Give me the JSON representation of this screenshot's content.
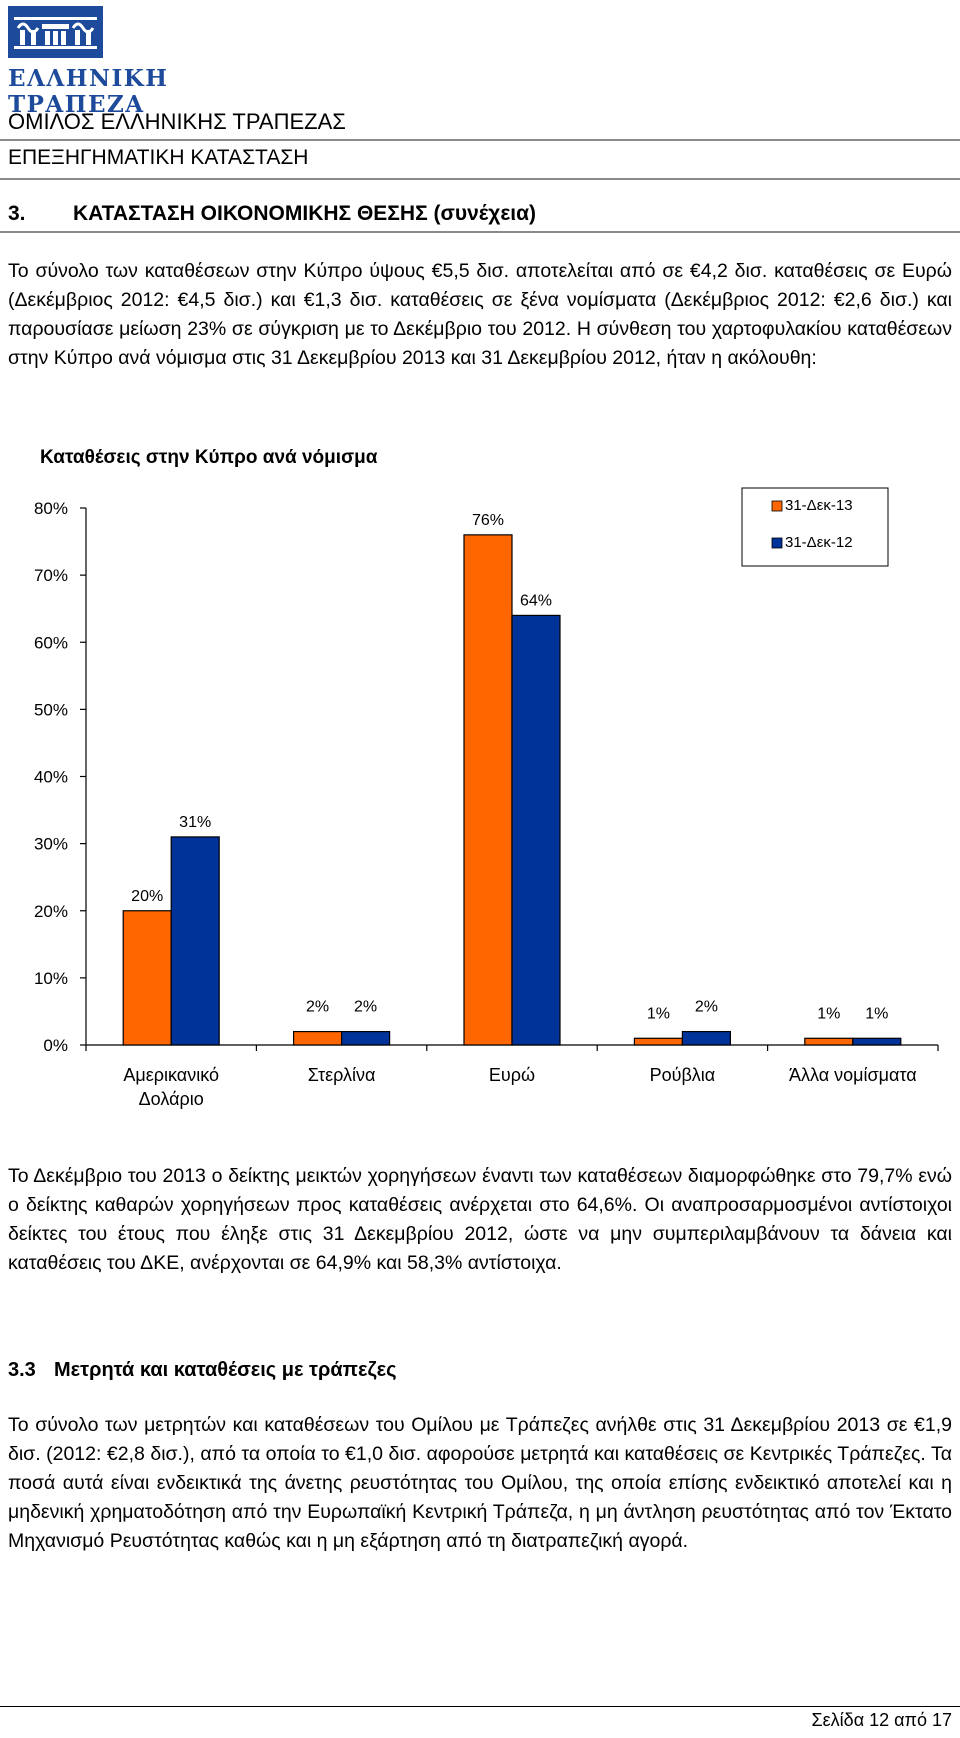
{
  "header": {
    "logo_text": "ΕΛΛΗΝΙΚΗ ΤΡΑΠΕΖΑ",
    "bank_name": "ΕΛΛΗΝΙΚΗ ΤΡΑΠΕΖΑ",
    "group_title": "ΟΜΙΛΟΣ ΕΛΛΗΝΙΚΗΣ ΤΡΑΠΕΖΑΣ",
    "report_title": "ΕΠΕΞΗΓΗΜΑΤΙΚΗ ΚΑΤΑΣΤΑΣΗ"
  },
  "section": {
    "number": "3.",
    "title": "ΚΑΤΑΣΤΑΣΗ ΟΙΚΟΝΟΜΙΚΗΣ ΘΕΣΗΣ (συνέχεια)"
  },
  "paragraph1": "Το σύνολο των καταθέσεων στην Κύπρο ύψους €5,5 δισ. αποτελείται από σε €4,2 δισ. καταθέσεις σε Ευρώ (Δεκέμβριος 2012: €4,5 δισ.) και €1,3 δισ. καταθέσεις σε ξένα νομίσματα (Δεκέμβριος 2012: €2,6 δισ.) και παρουσίασε μείωση 23% σε σύγκριση με το Δεκέμβριο του 2012. Η σύνθεση του χαρτοφυλακίου καταθέσεων στην Κύπρο ανά νόμισμα στις 31 Δεκεμβρίου 2013 και 31 Δεκεμβρίου 2012, ήταν η ακόλουθη:",
  "chart_data": {
    "type": "bar",
    "title": "Καταθέσεις στην Κύπρο ανά νόμισμα",
    "categories": [
      "Αμερικανικό Δολάριο",
      "Στερλίνα",
      "Ευρώ",
      "Ρούβλια",
      "Άλλα νομίσματα"
    ],
    "series": [
      {
        "name": "31-Δεκ-13",
        "values": [
          20,
          2,
          76,
          1,
          1
        ],
        "labels": [
          "20%",
          "2%",
          "76%",
          "1%",
          "1%"
        ],
        "color": "#ff6600"
      },
      {
        "name": "31-Δεκ-12",
        "values": [
          31,
          2,
          64,
          2,
          1
        ],
        "labels": [
          "31%",
          "2%",
          "64%",
          "2%",
          "1%"
        ],
        "color": "#003399"
      }
    ],
    "yticks": [
      "0%",
      "10%",
      "20%",
      "30%",
      "40%",
      "50%",
      "60%",
      "70%",
      "80%"
    ],
    "ylim": [
      0,
      80
    ],
    "legend_position": "top-right",
    "grid": false
  },
  "paragraph2": "Το Δεκέμβριο του 2013 ο δείκτης μεικτών χορηγήσεων έναντι των καταθέσεων διαμορφώθηκε στο 79,7% ενώ ο δείκτης καθαρών χορηγήσεων προς καταθέσεις ανέρχεται στο 64,6%. Οι αναπροσαρμοσμένοι αντίστοιχοι δείκτες του έτους που έληξε στις 31 Δεκεμβρίου 2012, ώστε να μην συμπεριλαμβάνουν τα δάνεια και καταθέσεις του ΔΚΕ, ανέρχονται σε 64,9% και 58,3% αντίστοιχα.",
  "subsection": {
    "number": "3.3",
    "title": "Μετρητά και καταθέσεις με τράπεζες"
  },
  "paragraph3": "Το σύνολο των μετρητών και καταθέσεων του Ομίλου με Τράπεζες ανήλθε στις 31 Δεκεμβρίου 2013 σε €1,9 δισ. (2012: €2,8 δισ.), από τα οποία το €1,0 δισ. αφορούσε μετρητά και καταθέσεις σε Κεντρικές Τράπεζες. Τα ποσά αυτά είναι ενδεικτικά της άνετης ρευστότητας του Ομίλου, της οποία επίσης ενδεικτικό αποτελεί και η μηδενική χρηματοδότηση από την Ευρωπαϊκή Κεντρική Τράπεζα, η μη άντληση ρευστότητας από τον Έκτατο Μηχανισμό Ρευστότητας καθώς και η μη εξάρτηση από τη διατραπεζική αγορά.",
  "footer": {
    "page": "Σελίδα 12 από 17"
  }
}
